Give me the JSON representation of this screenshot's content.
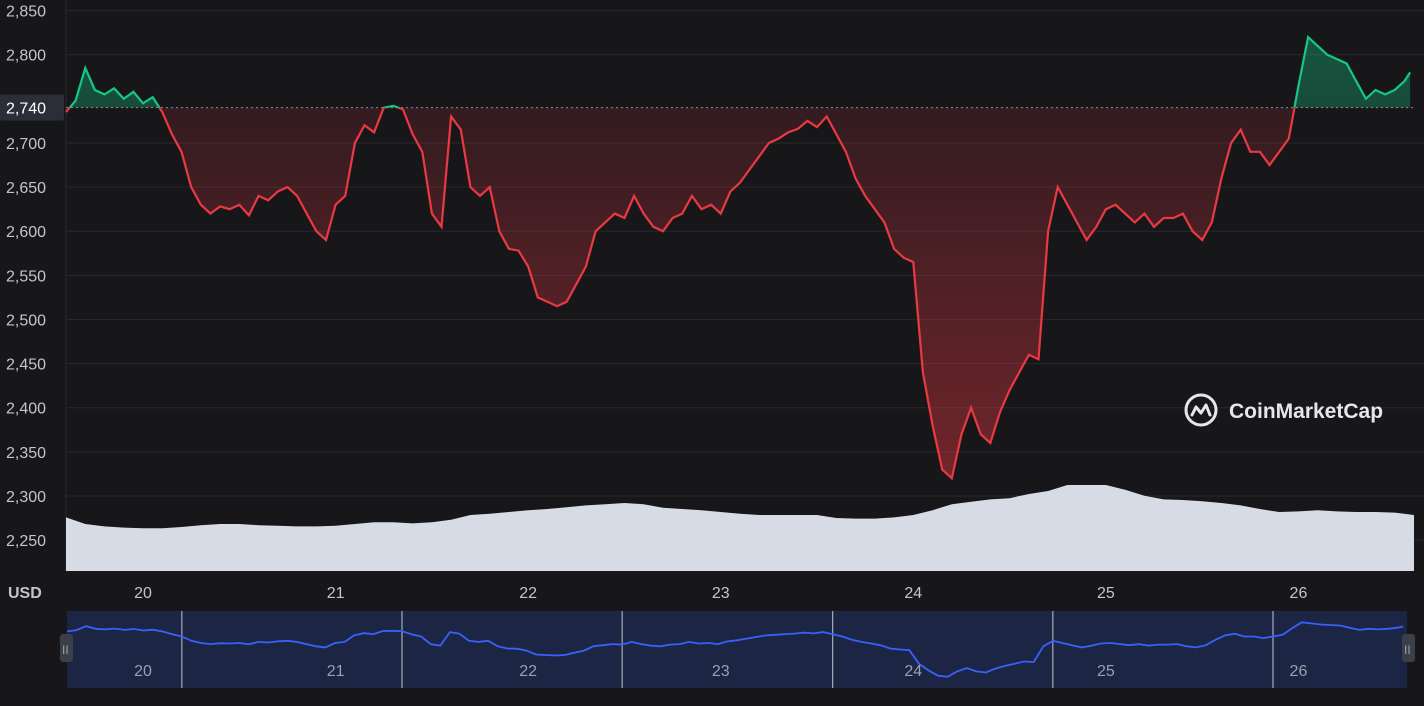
{
  "chart_data": {
    "type": "line",
    "currency_label": "USD",
    "watermark": "CoinMarketCap",
    "current_price_label": "2,740",
    "reference_price": 2740,
    "ylim": [
      2215,
      2862
    ],
    "y_ticks": [
      {
        "value": 2850,
        "label": "2,850"
      },
      {
        "value": 2800,
        "label": "2,800"
      },
      {
        "value": 2700,
        "label": "2,700"
      },
      {
        "value": 2650,
        "label": "2,650"
      },
      {
        "value": 2600,
        "label": "2,600"
      },
      {
        "value": 2550,
        "label": "2,550"
      },
      {
        "value": 2500,
        "label": "2,500"
      },
      {
        "value": 2450,
        "label": "2,450"
      },
      {
        "value": 2400,
        "label": "2,400"
      },
      {
        "value": 2350,
        "label": "2,350"
      },
      {
        "value": 2300,
        "label": "2,300"
      },
      {
        "value": 2250,
        "label": "2,250"
      }
    ],
    "xlim": [
      19.6,
      26.6
    ],
    "x_ticks": [
      {
        "value": 20,
        "label": "20"
      },
      {
        "value": 21,
        "label": "21"
      },
      {
        "value": 22,
        "label": "22"
      },
      {
        "value": 23,
        "label": "23"
      },
      {
        "value": 24,
        "label": "24"
      },
      {
        "value": 25,
        "label": "25"
      },
      {
        "value": 26,
        "label": "26"
      }
    ],
    "series": [
      {
        "x": [
          19.6,
          19.65,
          19.7,
          19.75,
          19.8,
          19.85,
          19.9,
          19.95,
          20.0,
          20.05,
          20.1,
          20.15,
          20.2,
          20.25,
          20.3,
          20.35,
          20.4,
          20.45,
          20.5,
          20.55,
          20.6,
          20.65,
          20.7,
          20.75,
          20.8,
          20.85,
          20.9,
          20.95,
          21.0,
          21.05,
          21.1,
          21.15,
          21.2,
          21.25,
          21.3,
          21.35,
          21.4,
          21.45,
          21.5,
          21.55,
          21.6,
          21.65,
          21.7,
          21.75,
          21.8,
          21.85,
          21.9,
          21.95,
          22.0,
          22.05,
          22.1,
          22.15,
          22.2,
          22.25,
          22.3,
          22.35,
          22.4,
          22.45,
          22.5,
          22.55,
          22.6,
          22.65,
          22.7,
          22.75,
          22.8,
          22.85,
          22.9,
          22.95,
          23.0,
          23.05,
          23.1,
          23.15,
          23.2,
          23.25,
          23.3,
          23.35,
          23.4,
          23.45,
          23.5,
          23.55,
          23.6,
          23.65,
          23.7,
          23.75,
          23.8,
          23.85,
          23.9,
          23.95,
          24.0,
          24.05,
          24.1,
          24.15,
          24.2,
          24.25,
          24.3,
          24.35,
          24.4,
          24.45,
          24.5,
          24.55,
          24.6,
          24.65,
          24.7,
          24.75,
          24.8,
          24.85,
          24.9,
          24.95,
          25.0,
          25.05,
          25.1,
          25.15,
          25.2,
          25.25,
          25.3,
          25.35,
          25.4,
          25.45,
          25.5,
          25.55,
          25.6,
          25.65,
          25.7,
          25.75,
          25.8,
          25.85,
          25.9,
          25.95,
          26.0,
          26.05,
          26.1,
          26.15,
          26.2,
          26.25,
          26.3,
          26.35,
          26.4,
          26.45,
          26.5,
          26.55,
          26.58
        ],
        "values": [
          2735,
          2748,
          2785,
          2760,
          2755,
          2762,
          2750,
          2758,
          2745,
          2752,
          2735,
          2710,
          2690,
          2650,
          2630,
          2620,
          2628,
          2625,
          2630,
          2618,
          2640,
          2635,
          2645,
          2650,
          2640,
          2620,
          2600,
          2590,
          2630,
          2640,
          2700,
          2720,
          2712,
          2740,
          2742,
          2738,
          2710,
          2690,
          2620,
          2605,
          2730,
          2715,
          2650,
          2640,
          2650,
          2600,
          2580,
          2578,
          2560,
          2525,
          2520,
          2515,
          2520,
          2540,
          2560,
          2600,
          2610,
          2620,
          2615,
          2640,
          2620,
          2605,
          2600,
          2615,
          2620,
          2640,
          2625,
          2630,
          2620,
          2645,
          2655,
          2670,
          2685,
          2700,
          2705,
          2712,
          2716,
          2725,
          2718,
          2730,
          2710,
          2690,
          2660,
          2640,
          2625,
          2610,
          2580,
          2570,
          2565,
          2440,
          2380,
          2330,
          2320,
          2370,
          2400,
          2370,
          2360,
          2395,
          2420,
          2440,
          2460,
          2455,
          2600,
          2650,
          2630,
          2610,
          2590,
          2605,
          2625,
          2630,
          2620,
          2610,
          2620,
          2605,
          2615,
          2615,
          2620,
          2600,
          2590,
          2610,
          2660,
          2700,
          2715,
          2690,
          2690,
          2675,
          2690,
          2705,
          2765,
          2820,
          2810,
          2800,
          2795,
          2790,
          2770,
          2750,
          2760,
          2755,
          2760,
          2770,
          2780
        ]
      }
    ],
    "volume": {
      "x": [
        19.6,
        19.7,
        19.8,
        19.9,
        20.0,
        20.1,
        20.2,
        20.3,
        20.4,
        20.5,
        20.6,
        20.7,
        20.8,
        20.9,
        21.0,
        21.1,
        21.2,
        21.3,
        21.4,
        21.5,
        21.6,
        21.7,
        21.8,
        21.9,
        22.0,
        22.1,
        22.2,
        22.3,
        22.4,
        22.5,
        22.6,
        22.7,
        22.8,
        22.9,
        23.0,
        23.1,
        23.2,
        23.3,
        23.4,
        23.5,
        23.6,
        23.7,
        23.8,
        23.9,
        24.0,
        24.1,
        24.2,
        24.3,
        24.4,
        24.5,
        24.6,
        24.7,
        24.8,
        24.9,
        25.0,
        25.1,
        25.2,
        25.3,
        25.4,
        25.5,
        25.6,
        25.7,
        25.8,
        25.9,
        26.0,
        26.1,
        26.2,
        26.3,
        26.4,
        26.5,
        26.6
      ],
      "values": [
        0.46,
        0.35,
        0.31,
        0.29,
        0.28,
        0.28,
        0.3,
        0.33,
        0.35,
        0.35,
        0.33,
        0.32,
        0.31,
        0.31,
        0.32,
        0.35,
        0.38,
        0.38,
        0.36,
        0.38,
        0.42,
        0.5,
        0.52,
        0.55,
        0.58,
        0.6,
        0.63,
        0.66,
        0.68,
        0.7,
        0.68,
        0.62,
        0.6,
        0.58,
        0.55,
        0.52,
        0.5,
        0.5,
        0.5,
        0.5,
        0.45,
        0.44,
        0.44,
        0.46,
        0.5,
        0.58,
        0.68,
        0.72,
        0.76,
        0.78,
        0.85,
        0.9,
        1.0,
        1.0,
        1.0,
        0.92,
        0.82,
        0.76,
        0.75,
        0.73,
        0.7,
        0.66,
        0.6,
        0.55,
        0.56,
        0.58,
        0.56,
        0.55,
        0.55,
        0.54,
        0.5
      ]
    },
    "navigator": {
      "labels": [
        "20",
        "21",
        "22",
        "23",
        "24",
        "25",
        "26"
      ],
      "handle_glyph": "II"
    }
  }
}
